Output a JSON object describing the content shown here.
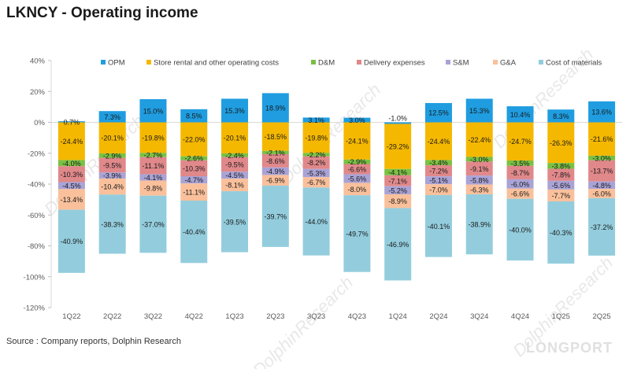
{
  "title": "LKNCY - Operating income",
  "source": "Source : Company reports, Dolphin Research",
  "watermark": "DolphinResearch",
  "brand": "LONGPORT",
  "chart_data": {
    "type": "bar",
    "stacked": true,
    "categories": [
      "1Q22",
      "2Q22",
      "3Q22",
      "4Q22",
      "1Q23",
      "2Q23",
      "3Q23",
      "4Q23",
      "1Q24",
      "2Q24",
      "3Q24",
      "4Q24",
      "1Q25",
      "2Q25"
    ],
    "ylim": [
      -120,
      40
    ],
    "yticks": [
      40,
      20,
      0,
      -20,
      -40,
      -60,
      -80,
      -100,
      -120
    ],
    "ytick_labels": [
      "40%",
      "20%",
      "0%",
      "-20%",
      "-40%",
      "-60%",
      "-80%",
      "-100%",
      "-120%"
    ],
    "grid": false,
    "legend_position": "top",
    "series": [
      {
        "name": "OPM",
        "color": "#1f9de0",
        "values": [
          0.7,
          7.3,
          15.0,
          8.5,
          15.3,
          18.9,
          3.1,
          3.0,
          -1.0,
          12.5,
          15.3,
          10.4,
          8.3,
          13.6
        ]
      },
      {
        "name": "Store rental and other operating costs",
        "color": "#f5b800",
        "values": [
          -24.4,
          -20.1,
          -19.8,
          -22.0,
          -20.1,
          -18.5,
          -19.8,
          -24.1,
          -29.2,
          -24.4,
          -22.4,
          -24.7,
          -26.3,
          -21.6
        ]
      },
      {
        "name": "D&M",
        "color": "#7ac143",
        "values": [
          -4.0,
          -2.9,
          -2.7,
          -2.6,
          -2.4,
          -2.1,
          -2.2,
          -2.9,
          -4.1,
          -3.4,
          -3.0,
          -3.5,
          -3.8,
          -3.0
        ]
      },
      {
        "name": "Delivery expenses",
        "color": "#e0888a",
        "values": [
          -10.3,
          -9.5,
          -11.1,
          -10.3,
          -9.5,
          -8.6,
          -8.2,
          -6.6,
          -7.1,
          -7.2,
          -9.1,
          -8.7,
          -7.8,
          -13.7
        ]
      },
      {
        "name": "S&M",
        "color": "#a9a3d6",
        "values": [
          -4.5,
          -3.9,
          -4.1,
          -4.7,
          -4.5,
          -4.9,
          -5.3,
          -5.6,
          -5.2,
          -5.1,
          -5.8,
          -6.0,
          -5.6,
          -4.8
        ]
      },
      {
        "name": "G&A",
        "color": "#f9c09b",
        "values": [
          -13.4,
          -10.4,
          -9.8,
          -11.1,
          -8.1,
          -6.9,
          -6.7,
          -8.0,
          -8.9,
          -7.0,
          -6.3,
          -6.6,
          -7.7,
          -6.0
        ]
      },
      {
        "name": "Cost of materials",
        "color": "#93cddd",
        "values": [
          -40.9,
          -38.3,
          -37.0,
          -40.4,
          -39.5,
          -39.7,
          -44.0,
          -49.7,
          -46.9,
          -40.1,
          -38.9,
          -40.0,
          -40.3,
          -37.2
        ]
      }
    ]
  }
}
